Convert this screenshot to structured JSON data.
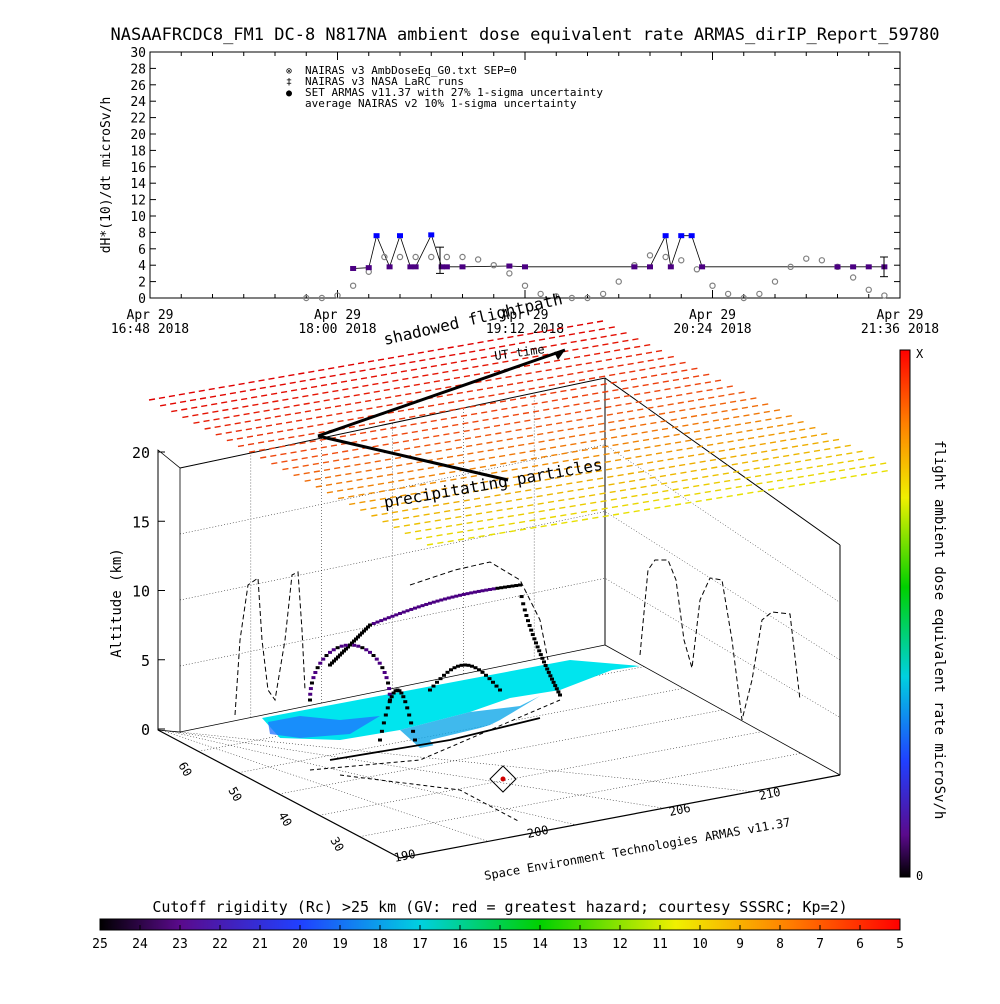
{
  "title": "NASAAFRCDC8_FM1 DC-8   N817NA ambient dose equivalent rate ARMAS_dirIP_Report_59780",
  "colors": {
    "nairas_v3": "#808080",
    "armas": "#0000ff",
    "armas_line": "#4b0082",
    "ground": "#00e5ee"
  },
  "chart_data": [
    {
      "type": "scatter",
      "ylabel": "dH*(10)/dt microSv/h",
      "ylim": [
        0,
        30
      ],
      "yticks": [
        0,
        2,
        4,
        6,
        8,
        10,
        12,
        14,
        16,
        18,
        20,
        22,
        24,
        26,
        28,
        30
      ],
      "xlim": [
        "16:48",
        "21:36"
      ],
      "x_ticks": [
        {
          "time": "16:48",
          "line1": "Apr 29",
          "line2": "16:48 2018"
        },
        {
          "time": "18:00",
          "line1": "Apr 29",
          "line2": "18:00 2018"
        },
        {
          "time": "19:12",
          "line1": "Apr 29",
          "line2": "19:12 2018"
        },
        {
          "time": "20:24",
          "line1": "Apr 29",
          "line2": "20:24 2018"
        },
        {
          "time": "21:36",
          "line1": "Apr 29",
          "line2": "21:36 2018"
        }
      ],
      "legend": {
        "placement": "top-left",
        "entries": [
          {
            "symbol": "⊗",
            "label": "NAIRAS v3 AmbDoseEq_G0.txt SEP=0"
          },
          {
            "symbol": "‡",
            "label": "NAIRAS v3 NASA LaRC runs"
          },
          {
            "symbol": "●",
            "label": "SET ARMAS v11.37 with 27% 1-sigma uncertainty"
          },
          {
            "symbol": "",
            "label": "average NAIRAS v2 10% 1-sigma uncertainty"
          }
        ]
      },
      "series": [
        {
          "name": "NAIRAS v3 AmbDoseEq_G0.txt SEP=0",
          "x": [
            "17:48",
            "17:54",
            "18:00",
            "18:06",
            "18:12",
            "18:18",
            "18:24",
            "18:30",
            "18:36",
            "18:42",
            "18:48",
            "18:54",
            "19:00",
            "19:06",
            "19:12",
            "19:18",
            "19:24",
            "19:30",
            "19:36",
            "19:42",
            "19:48",
            "19:54",
            "20:00",
            "20:06",
            "20:12",
            "20:18",
            "20:24",
            "20:30",
            "20:36",
            "20:42",
            "20:48",
            "20:54",
            "21:00",
            "21:06",
            "21:12",
            "21:18",
            "21:24",
            "21:30"
          ],
          "y": [
            0,
            0,
            0.3,
            1.5,
            3.2,
            5,
            5,
            5,
            5,
            5,
            5,
            4.7,
            4,
            3,
            1.5,
            0.5,
            0.2,
            0,
            0,
            0.5,
            2,
            4,
            5.2,
            5,
            4.6,
            3.5,
            1.5,
            0.5,
            0,
            0.5,
            2,
            3.8,
            4.8,
            4.6,
            3.8,
            2.5,
            1,
            0.3
          ]
        },
        {
          "name": "SET ARMAS v11.37 with 27% 1-sigma uncertainty",
          "x": [
            "18:06",
            "18:12",
            "18:15",
            "18:20",
            "18:24",
            "18:28",
            "18:30",
            "18:36",
            "18:40",
            "18:42",
            "18:48",
            "19:06",
            "19:12",
            "19:54",
            "20:00",
            "20:06",
            "20:08",
            "20:12",
            "20:16",
            "20:20",
            "21:12",
            "21:18",
            "21:24",
            "21:30"
          ],
          "y": [
            3.6,
            3.7,
            7.6,
            3.8,
            7.6,
            3.8,
            3.8,
            7.7,
            3.8,
            3.8,
            3.8,
            3.9,
            3.8,
            3.8,
            3.8,
            7.6,
            3.8,
            7.6,
            7.6,
            3.8,
            3.8,
            3.8,
            3.8,
            3.8
          ]
        }
      ]
    },
    {
      "type": "scatter",
      "title": "",
      "ylabel": "Altitude (km)",
      "yticks": [
        0,
        5,
        10,
        15,
        20
      ],
      "x_ticks": [
        "190",
        "200",
        "206",
        "210"
      ],
      "y_ticks_depth": [
        "60",
        "50",
        "40",
        "30"
      ],
      "annotations": [
        "shadowed flightpath",
        "UT time",
        "precipitating particles",
        "Space Environment Technologies ARMAS v11.37"
      ],
      "colorbar": {
        "label": "flight ambient dose equivalent rate microSv/h",
        "top_label": "X",
        "bottom_label": "0"
      }
    },
    {
      "type": "heatmap",
      "colorbar_label": "Cutoff rigidity (Rc) >25 km (GV: red = greatest hazard; courtesy SSSRC; Kp=2)",
      "ticks": [
        "25",
        "24",
        "23",
        "22",
        "21",
        "20",
        "19",
        "18",
        "17",
        "16",
        "15",
        "14",
        "13",
        "12",
        "11",
        "10",
        "9",
        "8",
        "7",
        "6",
        "5"
      ]
    }
  ]
}
